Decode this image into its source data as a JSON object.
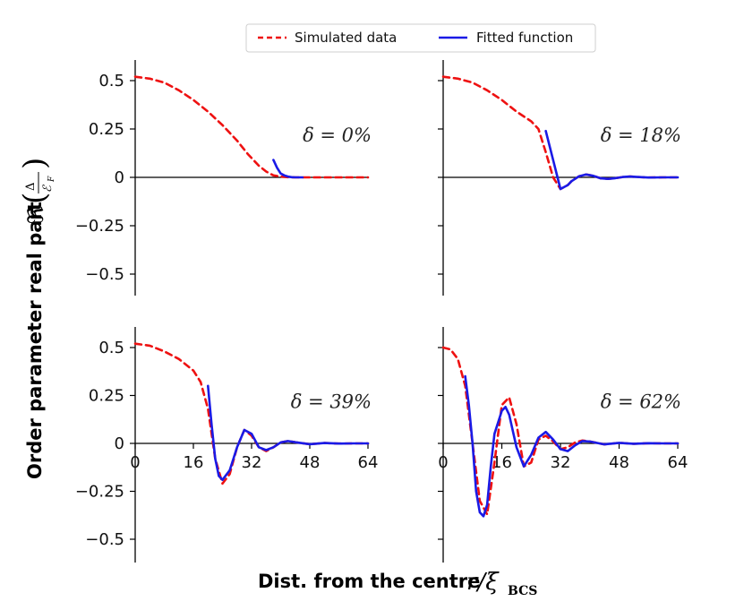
{
  "chart_data": {
    "type": "line",
    "legend": {
      "placement": "top-center",
      "entries": [
        {
          "name": "Simulated data",
          "color": "#ee1111",
          "style": "dashed"
        },
        {
          "name": "Fitted function",
          "color": "#1a1ae6",
          "style": "solid"
        }
      ]
    },
    "ylabel": {
      "text": "Order parameter real part",
      "symbol": "ℜ",
      "numerator": "Δ",
      "denominator": "ℰ",
      "denominator_sub": "F"
    },
    "xlabel": {
      "text": "Dist. from the centre",
      "math": "r/ξ",
      "sub": "BCS"
    },
    "xticks": [
      0,
      16,
      32,
      48,
      64
    ],
    "yticks": [
      0.5,
      0.25,
      0,
      -0.25,
      -0.5
    ],
    "ytick_labels": [
      "0.5",
      "0.25",
      "0",
      "−0.25",
      "−0.5"
    ],
    "xlim": [
      0,
      64
    ],
    "ylim": [
      -0.6,
      0.6
    ],
    "panels": [
      {
        "label": "δ = 0%",
        "series": [
          {
            "name": "Simulated data",
            "x": [
              0,
              4,
              8,
              12,
              16,
              20,
              24,
              28,
              31,
              34,
              36,
              38,
              40,
              42,
              44,
              48,
              56,
              64
            ],
            "y": [
              0.52,
              0.51,
              0.49,
              0.45,
              0.4,
              0.34,
              0.27,
              0.19,
              0.12,
              0.06,
              0.03,
              0.01,
              0.004,
              0.001,
              0.0,
              0.0,
              0.0,
              0.0
            ]
          },
          {
            "name": "Fitted function",
            "x": [
              38,
              39,
              40,
              41,
              42,
              43,
              44,
              46
            ],
            "y": [
              0.09,
              0.05,
              0.02,
              0.01,
              0.004,
              0.001,
              0.0,
              0.0
            ]
          }
        ]
      },
      {
        "label": "δ = 18%",
        "series": [
          {
            "name": "Simulated data",
            "x": [
              0,
              4,
              8,
              12,
              16,
              20,
              24,
              26,
              28,
              30,
              32,
              34,
              35,
              37,
              39,
              41,
              43,
              45,
              47,
              49,
              51,
              53,
              56,
              60,
              64
            ],
            "y": [
              0.52,
              0.51,
              0.49,
              0.45,
              0.4,
              0.34,
              0.29,
              0.25,
              0.13,
              0.0,
              -0.06,
              -0.04,
              -0.02,
              0.005,
              0.015,
              0.008,
              -0.005,
              -0.008,
              -0.004,
              0.002,
              0.004,
              0.002,
              -0.001,
              0.0,
              0.0
            ]
          },
          {
            "name": "Fitted function",
            "x": [
              28,
              30,
              32,
              34,
              35,
              37,
              39,
              41,
              43,
              45,
              47,
              49,
              51,
              53,
              56,
              60,
              64
            ],
            "y": [
              0.24,
              0.09,
              -0.06,
              -0.04,
              -0.02,
              0.005,
              0.015,
              0.008,
              -0.005,
              -0.008,
              -0.004,
              0.002,
              0.004,
              0.002,
              -0.001,
              0.0,
              0.0
            ]
          }
        ]
      },
      {
        "label": "δ = 39%",
        "series": [
          {
            "name": "Simulated data",
            "x": [
              0,
              4,
              8,
              12,
              16,
              18,
              20,
              22,
              24,
              26,
              28,
              30,
              32,
              34,
              36,
              38,
              40,
              42,
              44,
              48,
              52,
              56,
              60,
              64
            ],
            "y": [
              0.52,
              0.51,
              0.48,
              0.44,
              0.38,
              0.32,
              0.18,
              -0.08,
              -0.21,
              -0.16,
              -0.02,
              0.07,
              0.04,
              -0.02,
              -0.04,
              -0.02,
              0.005,
              0.012,
              0.006,
              -0.004,
              0.002,
              -0.001,
              0.0,
              0.0
            ]
          },
          {
            "name": "Fitted function",
            "x": [
              20,
              21,
              22,
              23,
              24,
              26,
              28,
              30,
              32,
              34,
              36,
              38,
              40,
              42,
              44,
              48,
              52,
              56,
              60,
              64
            ],
            "y": [
              0.3,
              0.1,
              -0.08,
              -0.17,
              -0.19,
              -0.14,
              -0.02,
              0.07,
              0.05,
              -0.02,
              -0.035,
              -0.02,
              0.005,
              0.012,
              0.006,
              -0.004,
              0.002,
              -0.001,
              0.0,
              0.0
            ]
          }
        ]
      },
      {
        "label": "δ = 62%",
        "series": [
          {
            "name": "Simulated data",
            "x": [
              0,
              2,
              4,
              6,
              8,
              10,
              12,
              14,
              16,
              18,
              20,
              22,
              24,
              26,
              28,
              30,
              32,
              34,
              36,
              38,
              40,
              44,
              48,
              52,
              56,
              60,
              64
            ],
            "y": [
              0.5,
              0.49,
              0.44,
              0.3,
              0.0,
              -0.3,
              -0.37,
              -0.1,
              0.2,
              0.24,
              0.1,
              -0.12,
              -0.1,
              0.02,
              0.04,
              0.01,
              -0.03,
              -0.02,
              0.005,
              0.015,
              0.01,
              -0.005,
              0.003,
              -0.002,
              0.001,
              0.0,
              0.0
            ]
          },
          {
            "name": "Fitted function",
            "x": [
              6,
              7,
              8,
              9,
              10,
              11,
              12,
              13,
              14,
              16,
              17,
              18,
              20,
              22,
              24,
              26,
              28,
              30,
              32,
              34,
              36,
              38,
              40,
              44,
              48,
              52,
              56,
              60,
              64
            ],
            "y": [
              0.35,
              0.2,
              0.0,
              -0.25,
              -0.36,
              -0.38,
              -0.32,
              -0.12,
              0.05,
              0.17,
              0.19,
              0.15,
              -0.02,
              -0.12,
              -0.06,
              0.03,
              0.06,
              0.02,
              -0.03,
              -0.04,
              -0.01,
              0.012,
              0.01,
              -0.005,
              0.003,
              -0.002,
              0.001,
              0.0,
              0.0
            ]
          }
        ]
      }
    ]
  }
}
